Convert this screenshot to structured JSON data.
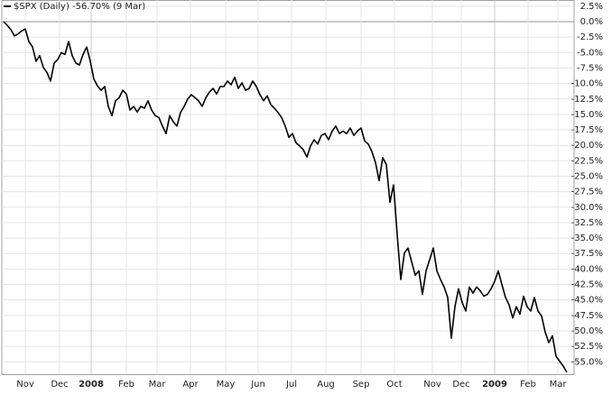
{
  "chart_data": {
    "type": "line",
    "series": [
      {
        "name": "$SPX (Daily) -56.70% (9 Mar)",
        "color": "#000000",
        "values": [
          0,
          -0.6,
          -1.3,
          -2.3,
          -2.0,
          -1.5,
          -1.2,
          -3.2,
          -4.1,
          -6.4,
          -5.5,
          -7.4,
          -8.2,
          -9.6,
          -6.7,
          -6.1,
          -5.0,
          -5.3,
          -3.2,
          -5.5,
          -6.7,
          -7.0,
          -5.3,
          -4.1,
          -6.4,
          -9.3,
          -10.4,
          -11.1,
          -10.5,
          -13.7,
          -15.2,
          -12.8,
          -12.3,
          -11.1,
          -11.7,
          -14.3,
          -13.7,
          -14.6,
          -13.7,
          -14.0,
          -12.8,
          -14.3,
          -15.2,
          -15.5,
          -16.9,
          -18.1,
          -15.2,
          -16.2,
          -16.9,
          -14.7,
          -13.7,
          -12.5,
          -11.8,
          -12.3,
          -12.8,
          -13.7,
          -12.3,
          -11.4,
          -10.8,
          -11.7,
          -10.5,
          -10.5,
          -9.6,
          -10.2,
          -9.0,
          -10.8,
          -9.9,
          -11.1,
          -10.8,
          -9.6,
          -10.5,
          -11.8,
          -12.8,
          -12.0,
          -13.4,
          -14.0,
          -14.7,
          -15.5,
          -16.9,
          -18.7,
          -18.1,
          -19.6,
          -20.1,
          -20.7,
          -21.9,
          -20.1,
          -19.1,
          -19.8,
          -18.4,
          -18.1,
          -19.1,
          -17.7,
          -16.9,
          -18.1,
          -17.7,
          -18.1,
          -17.2,
          -18.4,
          -17.7,
          -17.2,
          -19.3,
          -19.8,
          -21.0,
          -22.8,
          -25.7,
          -22.0,
          -23.1,
          -29.2,
          -26.4,
          -34.4,
          -41.7,
          -37.4,
          -36.6,
          -38.8,
          -41.0,
          -40.3,
          -44.1,
          -40.3,
          -38.5,
          -36.6,
          -40.3,
          -41.7,
          -42.9,
          -44.6,
          -51.2,
          -46.1,
          -43.2,
          -45.4,
          -46.8,
          -42.9,
          -43.9,
          -42.9,
          -43.5,
          -44.4,
          -44.1,
          -43.2,
          -42.0,
          -40.3,
          -42.5,
          -44.6,
          -45.8,
          -47.9,
          -46.1,
          -47.3,
          -44.4,
          -46.1,
          -46.8,
          -44.6,
          -46.8,
          -47.6,
          -50.2,
          -51.9,
          -50.8,
          -54.1,
          -54.9,
          -55.7,
          -56.7
        ]
      }
    ],
    "xlim": [
      -0.5,
      158
    ],
    "xticks": [
      {
        "value": 6,
        "label": "Nov"
      },
      {
        "value": 15.5,
        "label": "Dec"
      },
      {
        "value": 24.25,
        "label": "2008"
      },
      {
        "value": 34,
        "label": "Feb"
      },
      {
        "value": 42.5,
        "label": "Mar"
      },
      {
        "value": 51.75,
        "label": "Apr"
      },
      {
        "value": 61.5,
        "label": "May"
      },
      {
        "value": 70.5,
        "label": "Jun"
      },
      {
        "value": 79.75,
        "label": "Jul"
      },
      {
        "value": 89.25,
        "label": "Aug"
      },
      {
        "value": 99,
        "label": "Sep"
      },
      {
        "value": 108.25,
        "label": "Oct"
      },
      {
        "value": 118.75,
        "label": "Nov"
      },
      {
        "value": 126.75,
        "label": "Dec"
      },
      {
        "value": 136,
        "label": "2009"
      },
      {
        "value": 145.25,
        "label": "Feb"
      },
      {
        "value": 153.5,
        "label": "Mar"
      }
    ],
    "ylim": [
      -57,
      3.5
    ],
    "yticks": [
      {
        "value": 2.5,
        "label": "2.5%"
      },
      {
        "value": 0,
        "label": "0.0%"
      },
      {
        "value": -2.5,
        "label": "-2.5%"
      },
      {
        "value": -5,
        "label": "-5.0%"
      },
      {
        "value": -7.5,
        "label": "-7.5%"
      },
      {
        "value": -10,
        "label": "-10.0%"
      },
      {
        "value": -12.5,
        "label": "-12.5%"
      },
      {
        "value": -15,
        "label": "-15.0%"
      },
      {
        "value": -17.5,
        "label": "-17.5%"
      },
      {
        "value": -20,
        "label": "-20.0%"
      },
      {
        "value": -22.5,
        "label": "-22.5%"
      },
      {
        "value": -25,
        "label": "-25.0%"
      },
      {
        "value": -27.5,
        "label": "-27.5%"
      },
      {
        "value": -30,
        "label": "-30.0%"
      },
      {
        "value": -32.5,
        "label": "-32.5%"
      },
      {
        "value": -35,
        "label": "-35.0%"
      },
      {
        "value": -37.5,
        "label": "-37.5%"
      },
      {
        "value": -40,
        "label": "-40.0%"
      },
      {
        "value": -42.5,
        "label": "-42.5%"
      },
      {
        "value": -45,
        "label": "-45.0%"
      },
      {
        "value": -47.5,
        "label": "-47.5%"
      },
      {
        "value": -50,
        "label": "-50.0%"
      },
      {
        "value": -52.5,
        "label": "-52.5%"
      },
      {
        "value": -55,
        "label": "-55.0%"
      }
    ],
    "grid": true
  }
}
